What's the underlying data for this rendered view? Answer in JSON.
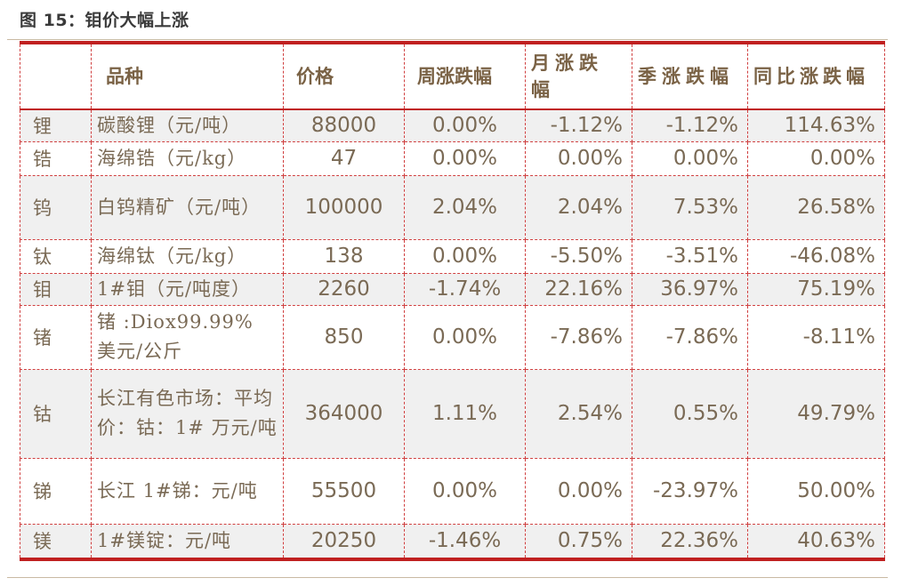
{
  "title": "图 15：钼价大幅上涨",
  "headers": [
    "",
    "品种",
    "价格",
    "周涨跌幅",
    "月涨跌幅",
    "季涨跌幅",
    "同比涨跌幅"
  ],
  "rows": [
    {
      "metal": "锂",
      "variety": "碳酸锂（元/吨）",
      "price": "88000",
      "week": "0.00%",
      "month": "-1.12%",
      "quarter": "-1.12%",
      "yoy": "114.63%"
    },
    {
      "metal": "锆",
      "variety": "海绵锆（元/kg）",
      "price": "47",
      "week": "0.00%",
      "month": "0.00%",
      "quarter": "0.00%",
      "yoy": "0.00%"
    },
    {
      "metal": "钨",
      "variety": "白钨精矿（元/吨）",
      "price": "100000",
      "week": "2.04%",
      "month": "2.04%",
      "quarter": "7.53%",
      "yoy": "26.58%"
    },
    {
      "metal": "钛",
      "variety": "海绵钛（元/kg）",
      "price": "138",
      "week": "0.00%",
      "month": "-5.50%",
      "quarter": "-3.51%",
      "yoy": "-46.08%"
    },
    {
      "metal": "钼",
      "variety": "1#钼（元/吨度）",
      "price": "2260",
      "week": "-1.74%",
      "month": "22.16%",
      "quarter": "36.97%",
      "yoy": "75.19%"
    },
    {
      "metal": "锗",
      "variety": "锗 :Diox99.99% 美元/公斤",
      "price": "850",
      "week": "0.00%",
      "month": "-7.86%",
      "quarter": "-7.86%",
      "yoy": "-8.11%"
    },
    {
      "metal": "钴",
      "variety": "长江有色市场：平均价：钴：1# 万元/吨",
      "price": "364000",
      "week": "1.11%",
      "month": "2.54%",
      "quarter": "0.55%",
      "yoy": "49.79%"
    },
    {
      "metal": "锑",
      "variety": "长江 1#锑：元/吨",
      "price": "55500",
      "week": "0.00%",
      "month": "0.00%",
      "quarter": "-23.97%",
      "yoy": "50.00%"
    },
    {
      "metal": "镁",
      "variety": "1#镁锭：元/吨",
      "price": "20250",
      "week": "-1.46%",
      "month": "0.75%",
      "quarter": "22.36%",
      "yoy": "40.63%"
    }
  ]
}
